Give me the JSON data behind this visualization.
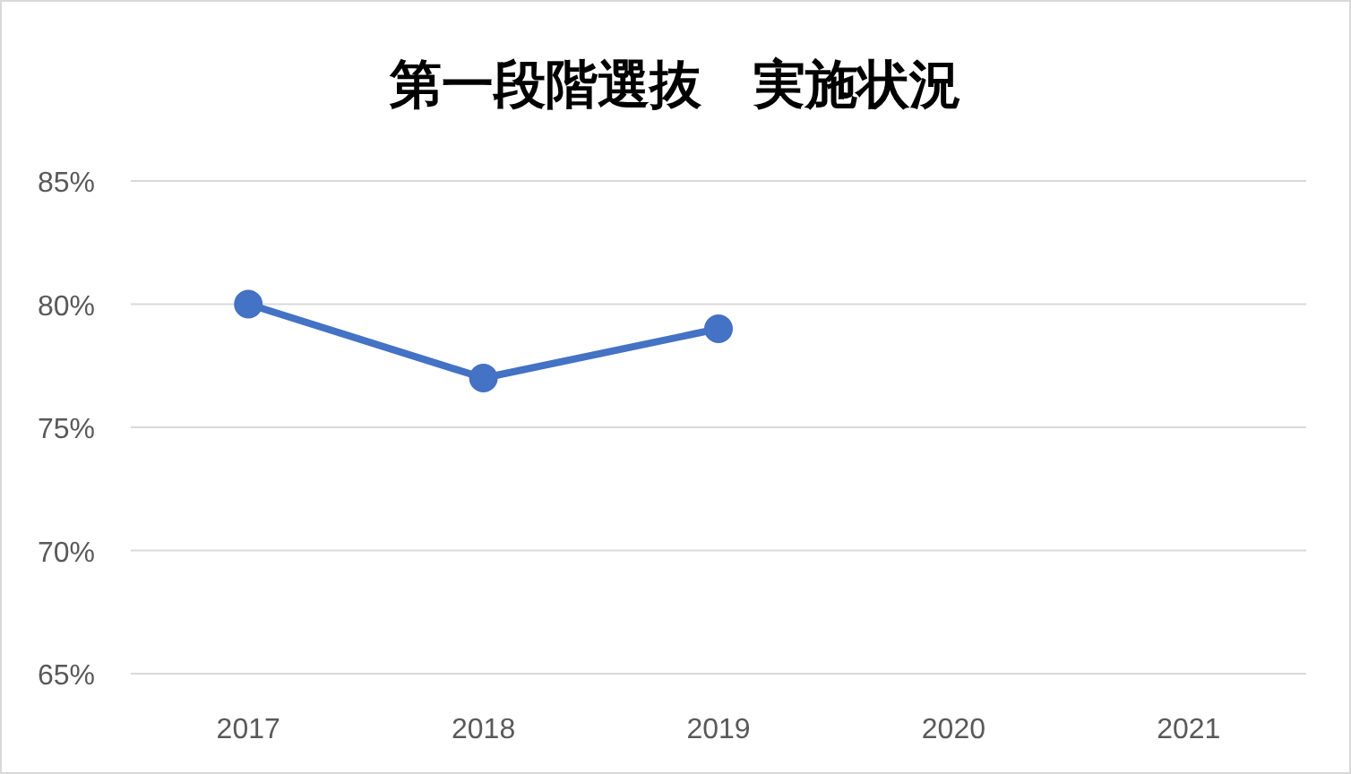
{
  "chart_data": {
    "type": "line",
    "title": "第一段階選抜　実施状況",
    "categories": [
      "2017",
      "2018",
      "2019",
      "2020",
      "2021"
    ],
    "series": [
      {
        "color": "#4472c4",
        "values": [
          80,
          77,
          79,
          null,
          null
        ]
      }
    ],
    "ylim": [
      65,
      85
    ],
    "yticks": [
      {
        "value": 65,
        "label": "65%"
      },
      {
        "value": 70,
        "label": "70%"
      },
      {
        "value": 75,
        "label": "75%"
      },
      {
        "value": 80,
        "label": "80%"
      },
      {
        "value": 85,
        "label": "85%"
      }
    ],
    "grid": "y",
    "marker": "circle",
    "line_style": "solid"
  }
}
